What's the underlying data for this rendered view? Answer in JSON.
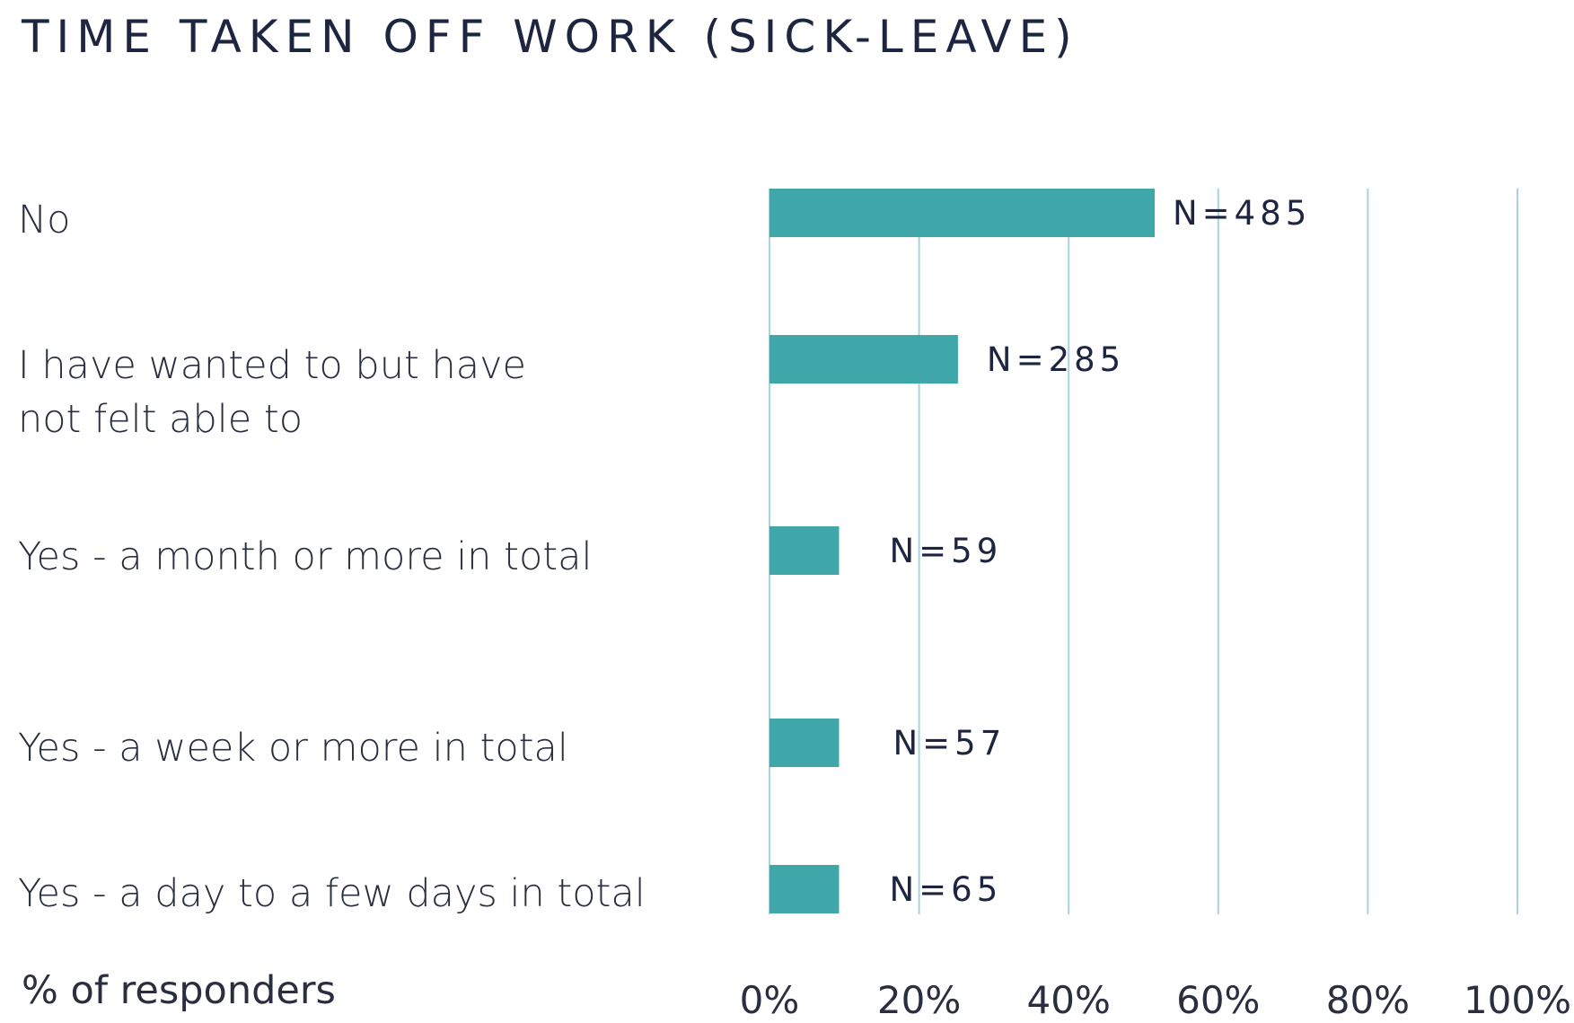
{
  "chart_data": {
    "type": "bar",
    "orientation": "horizontal",
    "title": "TIME TAKEN OFF WORK (SICK-LEAVE)",
    "xlabel": "% of responders",
    "categories": [
      "No",
      "I have wanted to but have not felt able to",
      "Yes - a month or more in total",
      "Yes - a week or more in total",
      "Yes - a day to a few days in total"
    ],
    "category_lines": [
      [
        "No"
      ],
      [
        "I have wanted to but have",
        "not felt able to"
      ],
      [
        "Yes - a month or more in total"
      ],
      [
        "Yes - a week or more in total"
      ],
      [
        "Yes - a day to a few days in total"
      ]
    ],
    "values": [
      51.5,
      25.2,
      9.3,
      9.3,
      9.3
    ],
    "data_labels": [
      "N=485",
      "N=285",
      "N=59",
      "N=57",
      "N=65"
    ],
    "x_ticks": [
      0,
      20,
      40,
      60,
      80,
      100
    ],
    "x_tick_labels": [
      "0%",
      "20%",
      "40%",
      "60%",
      "80%",
      "100%"
    ],
    "xlim": [
      0,
      100
    ],
    "grid": true,
    "legend": "none",
    "colors": {
      "bar": "#3fa6aa",
      "grid": "#a9d3df",
      "text": "#2a2e3e",
      "title": "#1e2540",
      "data_label": "#1e2540"
    }
  }
}
